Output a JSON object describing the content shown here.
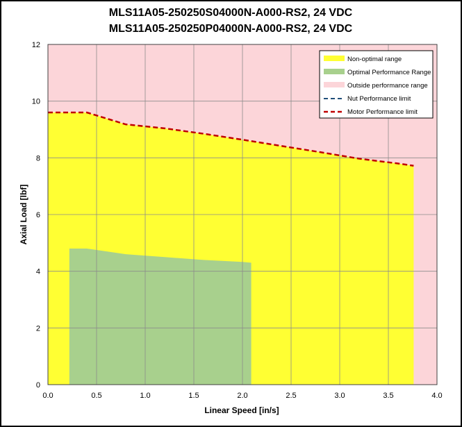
{
  "chart_data": {
    "type": "area",
    "title_lines": [
      "MLS11A05-250250S04000N-A000-RS2, 24 VDC",
      "MLS11A05-250250P04000N-A000-RS2, 24 VDC"
    ],
    "xlabel": "Linear Speed [in/s]",
    "ylabel": "Axial Load [lbf]",
    "xlim": [
      0,
      4
    ],
    "ylim": [
      0,
      12
    ],
    "x_ticks": [
      "0.0",
      "0.5",
      "1.0",
      "1.5",
      "2.0",
      "2.5",
      "3.0",
      "3.5",
      "4.0"
    ],
    "x_tick_values": [
      0,
      0.5,
      1,
      1.5,
      2,
      2.5,
      3,
      3.5,
      4
    ],
    "y_ticks": [
      "0",
      "2",
      "4",
      "6",
      "8",
      "10",
      "12"
    ],
    "y_tick_values": [
      0,
      2,
      4,
      6,
      8,
      10,
      12
    ],
    "grid": true,
    "legend_position": "top-right",
    "series": [
      {
        "name": "Non-optimal range",
        "kind": "area",
        "color": "#ffff33",
        "x": [
          0,
          0.4,
          0.8,
          1.2,
          1.6,
          2.0,
          2.4,
          2.8,
          3.2,
          3.6,
          3.76
        ],
        "y": [
          9.6,
          9.6,
          9.18,
          9.04,
          8.85,
          8.64,
          8.42,
          8.2,
          7.97,
          7.8,
          7.72
        ]
      },
      {
        "name": "Optimal Performance Range",
        "kind": "area",
        "color": "#a8d08d",
        "x": [
          0.22,
          0.4,
          0.8,
          1.2,
          1.6,
          2.0,
          2.09
        ],
        "y": [
          4.8,
          4.8,
          4.6,
          4.5,
          4.4,
          4.33,
          4.3
        ]
      },
      {
        "name": "Outside performance range",
        "kind": "background",
        "color": "#fcd5d9"
      },
      {
        "name": "Nut Performance limit",
        "kind": "dashed-line",
        "color": "#1f4e79"
      },
      {
        "name": "Motor Performance limit",
        "kind": "dashed-line",
        "color": "#c00000",
        "x": [
          0,
          0.4,
          0.8,
          1.2,
          1.6,
          2.0,
          2.4,
          2.8,
          3.2,
          3.6,
          3.76
        ],
        "y": [
          9.6,
          9.6,
          9.18,
          9.04,
          8.85,
          8.64,
          8.42,
          8.2,
          7.97,
          7.8,
          7.72
        ]
      }
    ]
  }
}
